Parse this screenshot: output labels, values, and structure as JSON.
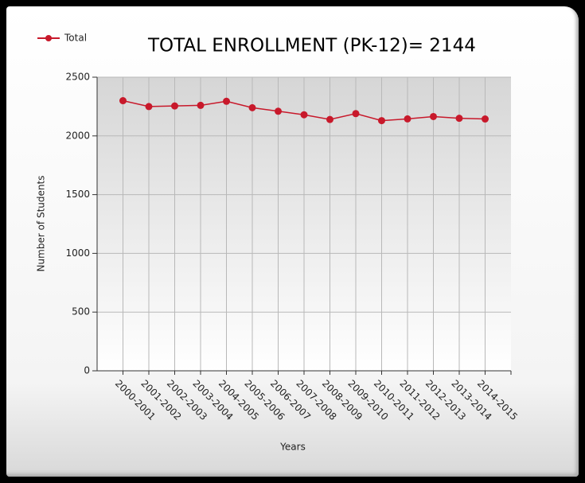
{
  "chart_data": {
    "type": "line",
    "title": "TOTAL ENROLLMENT (PK-12)=  2144",
    "x_label": "Years",
    "y_label": "Number of Students",
    "categories": [
      "2000-2001",
      "2001-2002",
      "2002-2003",
      "2003-2004",
      "2004-2005",
      "2005-2006",
      "2006-2007",
      "2007-2008",
      "2008-2009",
      "2009-2010",
      "2010-2011",
      "2011-2012",
      "2012-2013",
      "2013-2014",
      "2014-2015"
    ],
    "series": [
      {
        "name": "Total",
        "color": "#c8192b",
        "values": [
          2300,
          2250,
          2255,
          2260,
          2295,
          2240,
          2210,
          2180,
          2140,
          2190,
          2130,
          2145,
          2165,
          2150,
          2144
        ]
      }
    ],
    "ylim": [
      0,
      2500
    ],
    "yticks": [
      0,
      500,
      1000,
      1500,
      2000,
      2500
    ],
    "grid": true,
    "legend": "top-left"
  }
}
